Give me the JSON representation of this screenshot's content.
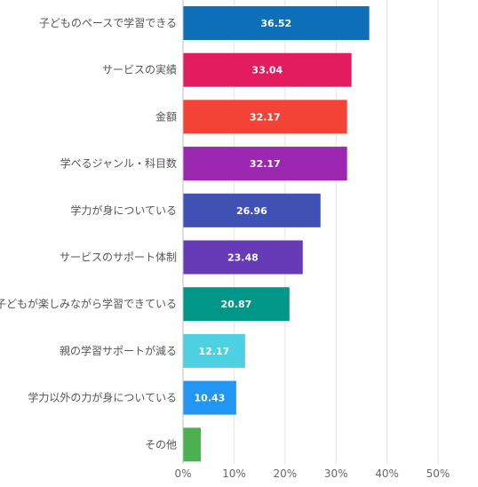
{
  "chart_data": {
    "type": "bar",
    "orientation": "horizontal",
    "title": "",
    "xlabel": "",
    "ylabel": "",
    "xlim": [
      0,
      55
    ],
    "x_ticks": [
      0,
      10,
      20,
      30,
      40,
      50
    ],
    "x_tick_labels": [
      "0%",
      "10%",
      "20%",
      "30%",
      "40%",
      "50%"
    ],
    "grid": true,
    "legend": "none",
    "categories": [
      "子どものペースで学習できる",
      "サービスの実績",
      "金額",
      "学べるジャンル・科目数",
      "学力が身についている",
      "サービスのサポート体制",
      "子どもが楽しみながら学習できている",
      "親の学習サポートが減る",
      "学力以外の力が身についている",
      "その他"
    ],
    "values": [
      36.52,
      33.04,
      32.17,
      32.17,
      26.96,
      23.48,
      20.87,
      12.17,
      10.43,
      3.48
    ],
    "data_labels": [
      "36.52",
      "33.04",
      "32.17",
      "32.17",
      "26.96",
      "23.48",
      "20.87",
      "12.17",
      "10.43",
      ""
    ],
    "colors": [
      "#0d6fb8",
      "#e31c5f",
      "#f44336",
      "#9c27b0",
      "#3f51b5",
      "#673ab7",
      "#009688",
      "#4dd0e1",
      "#2196f3",
      "#4caf50"
    ]
  }
}
